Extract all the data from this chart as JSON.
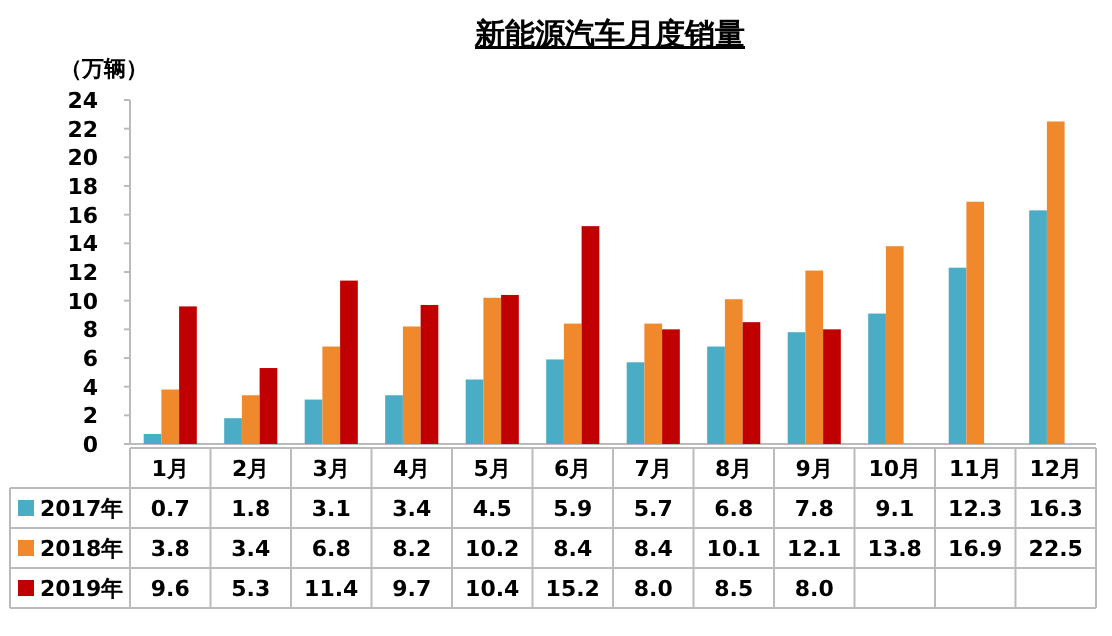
{
  "chart_data": {
    "type": "bar",
    "title": "新能源汽车月度销量",
    "ylabel": "（万辆）",
    "categories": [
      "1月",
      "2月",
      "3月",
      "4月",
      "5月",
      "6月",
      "7月",
      "8月",
      "9月",
      "10月",
      "11月",
      "12月"
    ],
    "series": [
      {
        "name": "2017年",
        "color": "#4bacc6",
        "values": [
          0.7,
          1.8,
          3.1,
          3.4,
          4.5,
          5.9,
          5.7,
          6.8,
          7.8,
          9.1,
          12.3,
          16.3
        ],
        "value_labels": [
          "0.7",
          "1.8",
          "3.1",
          "3.4",
          "4.5",
          "5.9",
          "5.7",
          "6.8",
          "7.8",
          "9.1",
          "12.3",
          "16.3"
        ]
      },
      {
        "name": "2018年",
        "color": "#f0882c",
        "values": [
          3.8,
          3.4,
          6.8,
          8.2,
          10.2,
          8.4,
          8.4,
          10.1,
          12.1,
          13.8,
          16.9,
          22.5
        ],
        "value_labels": [
          "3.8",
          "3.4",
          "6.8",
          "8.2",
          "10.2",
          "8.4",
          "8.4",
          "10.1",
          "12.1",
          "13.8",
          "16.9",
          "22.5"
        ]
      },
      {
        "name": "2019年",
        "color": "#c00000",
        "values": [
          9.6,
          5.3,
          11.4,
          9.7,
          10.4,
          15.2,
          8.0,
          8.5,
          8.0,
          null,
          null,
          null
        ],
        "value_labels": [
          "9.6",
          "5.3",
          "11.4",
          "9.7",
          "10.4",
          "15.2",
          "8.0",
          "8.5",
          "8.0",
          null,
          null,
          null
        ]
      }
    ],
    "ylim": [
      0,
      24
    ],
    "yticks": [
      0,
      2,
      4,
      6,
      8,
      10,
      12,
      14,
      16,
      18,
      20,
      22,
      24
    ],
    "legend": "bottom"
  }
}
